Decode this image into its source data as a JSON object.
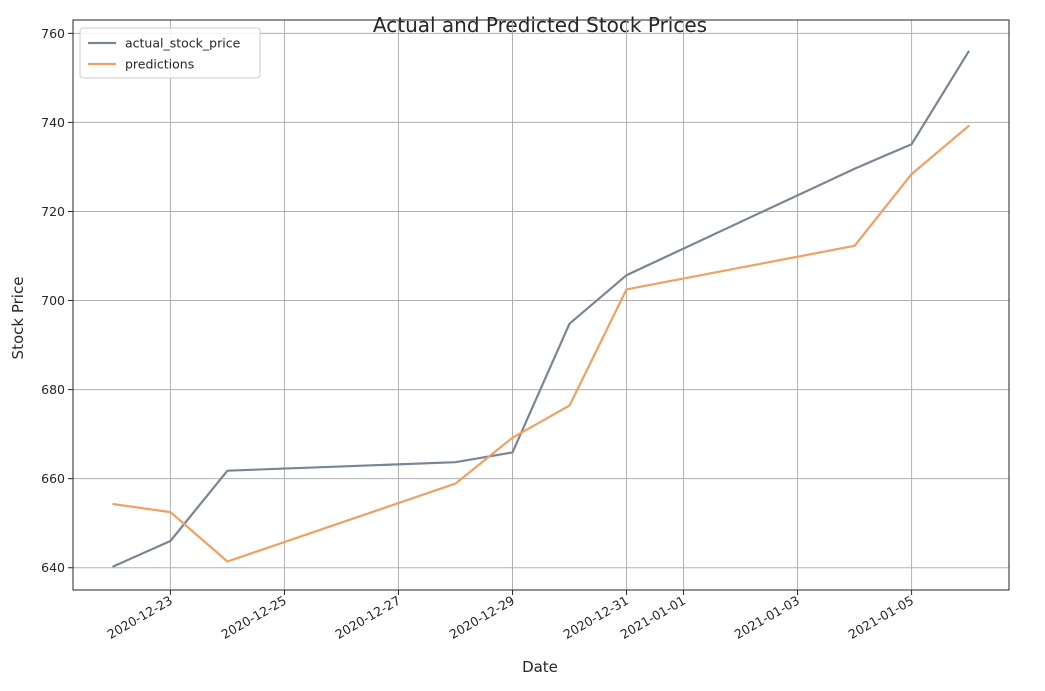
{
  "chart_data": {
    "type": "line",
    "title": "Actual and Predicted Stock Prices",
    "xlabel": "Date",
    "ylabel": "Stock Price",
    "ylim": [
      635,
      763
    ],
    "xlim": [
      "2020-12-21T07:00",
      "2021-01-06T17:00"
    ],
    "x_tick_labels": [
      "2020-12-23",
      "2020-12-25",
      "2020-12-27",
      "2020-12-29",
      "2020-12-31",
      "2021-01-01",
      "2021-01-03",
      "2021-01-05"
    ],
    "y_ticks": [
      640,
      660,
      680,
      700,
      720,
      740,
      760
    ],
    "grid": true,
    "legend_position": "upper-left",
    "series": [
      {
        "name": "actual_stock_price",
        "color": "#7a8593",
        "x": [
          "2020-12-22",
          "2020-12-23",
          "2020-12-24",
          "2020-12-28",
          "2020-12-29",
          "2020-12-30",
          "2020-12-31",
          "2021-01-04",
          "2021-01-05",
          "2021-01-06"
        ],
        "y": [
          640.3,
          646.0,
          661.8,
          663.7,
          665.9,
          694.8,
          705.7,
          729.6,
          735.1,
          755.9
        ]
      },
      {
        "name": "predictions",
        "color": "#f0a062",
        "x": [
          "2020-12-22",
          "2020-12-23",
          "2020-12-24",
          "2020-12-28",
          "2020-12-29",
          "2020-12-30",
          "2020-12-31",
          "2021-01-04",
          "2021-01-05",
          "2021-01-06"
        ],
        "y": [
          654.3,
          652.5,
          641.4,
          658.9,
          669.2,
          676.4,
          702.5,
          712.3,
          728.4,
          739.2
        ]
      }
    ]
  }
}
